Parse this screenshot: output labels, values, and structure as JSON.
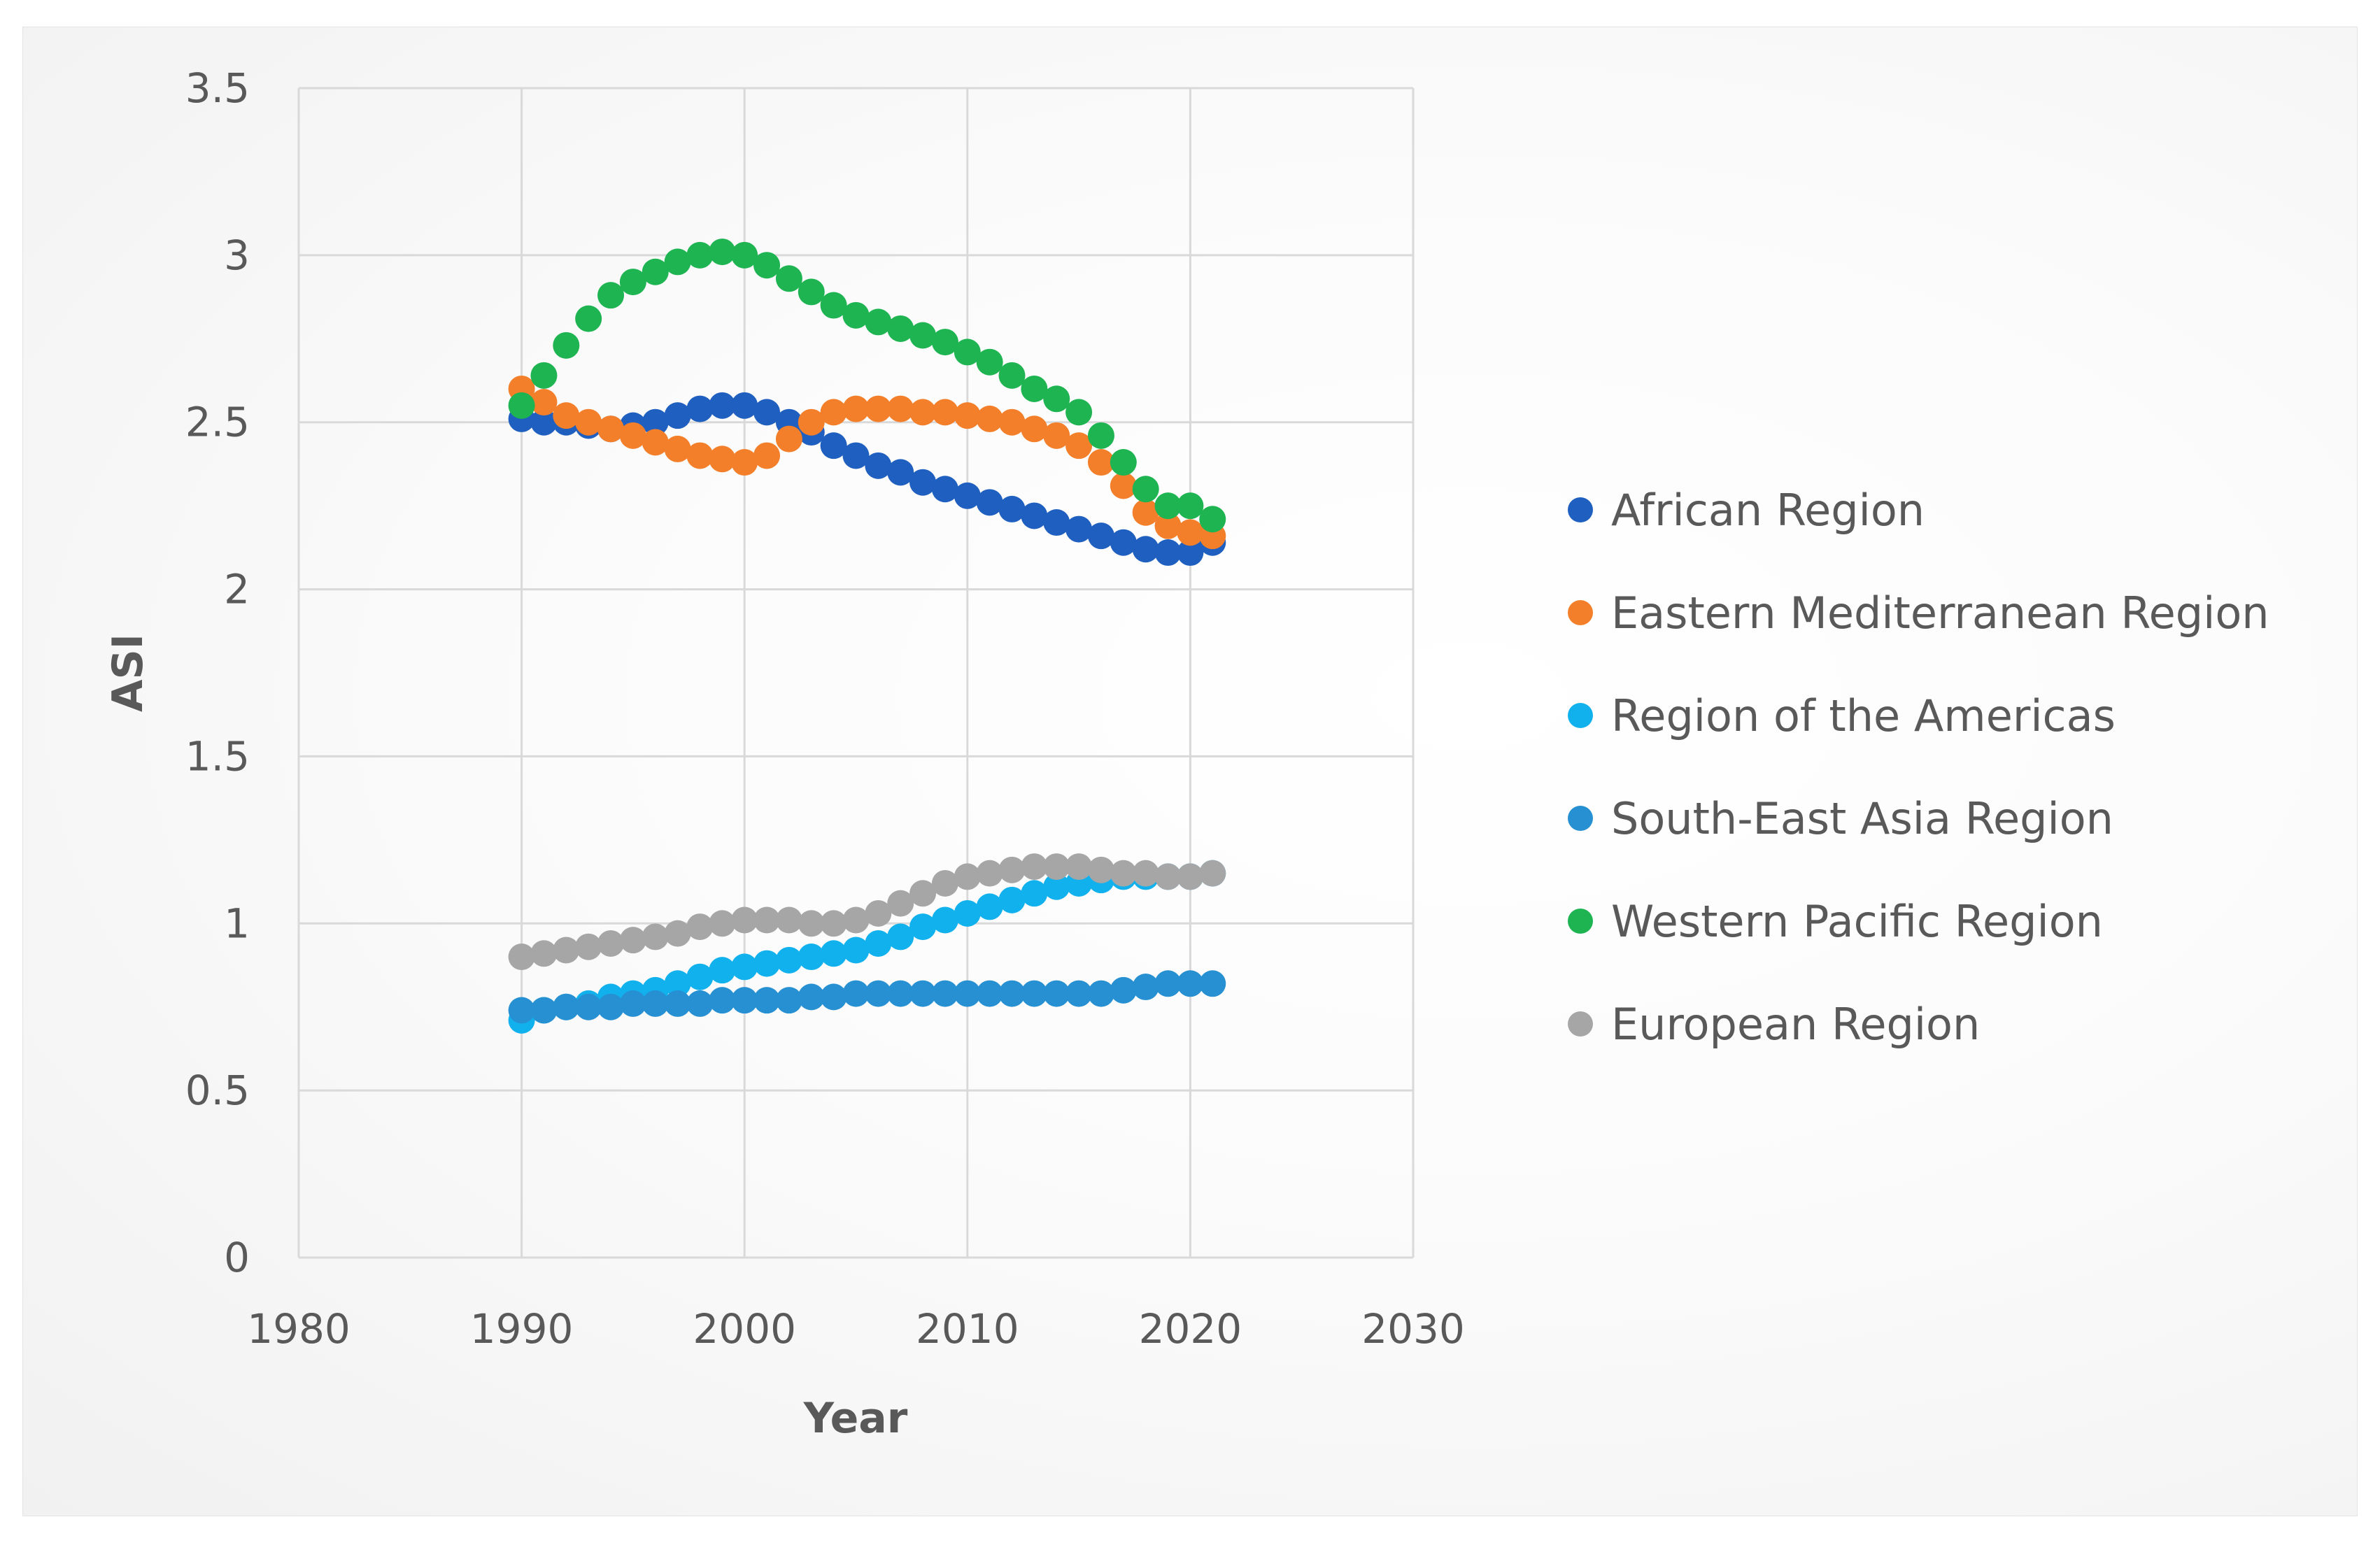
{
  "chart_data": {
    "type": "scatter",
    "title": "",
    "xlabel": "Year",
    "ylabel": "ASI",
    "xlim": [
      1980,
      2030
    ],
    "ylim": [
      0,
      3.5
    ],
    "xticks": [
      1980,
      1990,
      2000,
      2010,
      2020,
      2030
    ],
    "xtick_labels": [
      "1980",
      "1990",
      "2000",
      "2010",
      "2020",
      "2030"
    ],
    "yticks": [
      0,
      0.5,
      1,
      1.5,
      2,
      2.5,
      3,
      3.5
    ],
    "ytick_labels": [
      "0",
      "0.5",
      "1",
      "1.5",
      "2",
      "2.5",
      "3",
      "3.5"
    ],
    "grid": true,
    "legend_position": "right",
    "x": [
      1990,
      1991,
      1992,
      1993,
      1994,
      1995,
      1996,
      1997,
      1998,
      1999,
      2000,
      2001,
      2002,
      2003,
      2004,
      2005,
      2006,
      2007,
      2008,
      2009,
      2010,
      2011,
      2012,
      2013,
      2014,
      2015,
      2016,
      2017,
      2018,
      2019,
      2020,
      2021
    ],
    "series": [
      {
        "name": "African Region",
        "color": "#1f5fbf",
        "values": [
          2.51,
          2.5,
          2.5,
          2.49,
          2.48,
          2.49,
          2.5,
          2.52,
          2.54,
          2.55,
          2.55,
          2.53,
          2.5,
          2.47,
          2.43,
          2.4,
          2.37,
          2.35,
          2.32,
          2.3,
          2.28,
          2.26,
          2.24,
          2.22,
          2.2,
          2.18,
          2.16,
          2.14,
          2.12,
          2.11,
          2.11,
          2.14
        ]
      },
      {
        "name": "Eastern Mediterranean Region",
        "color": "#f47f2a",
        "values": [
          2.6,
          2.56,
          2.52,
          2.5,
          2.48,
          2.46,
          2.44,
          2.42,
          2.4,
          2.39,
          2.38,
          2.4,
          2.45,
          2.5,
          2.53,
          2.54,
          2.54,
          2.54,
          2.53,
          2.53,
          2.52,
          2.51,
          2.5,
          2.48,
          2.46,
          2.43,
          2.38,
          2.31,
          2.23,
          2.19,
          2.17,
          2.16
        ]
      },
      {
        "name": "Region of the Americas",
        "color": "#11b1ee",
        "values": [
          0.71,
          0.74,
          0.75,
          0.76,
          0.78,
          0.79,
          0.8,
          0.82,
          0.84,
          0.86,
          0.87,
          0.88,
          0.89,
          0.9,
          0.91,
          0.92,
          0.94,
          0.96,
          0.99,
          1.01,
          1.03,
          1.05,
          1.07,
          1.09,
          1.11,
          1.12,
          1.13,
          1.14,
          1.14,
          1.14,
          1.14,
          1.15
        ]
      },
      {
        "name": "South-East Asia Region",
        "color": "#2790d2",
        "values": [
          0.74,
          0.74,
          0.75,
          0.75,
          0.75,
          0.76,
          0.76,
          0.76,
          0.76,
          0.77,
          0.77,
          0.77,
          0.77,
          0.78,
          0.78,
          0.79,
          0.79,
          0.79,
          0.79,
          0.79,
          0.79,
          0.79,
          0.79,
          0.79,
          0.79,
          0.79,
          0.79,
          0.8,
          0.81,
          0.82,
          0.82,
          0.82
        ]
      },
      {
        "name": "Western Pacific Region",
        "color": "#1db451",
        "values": [
          2.55,
          2.64,
          2.73,
          2.81,
          2.88,
          2.92,
          2.95,
          2.98,
          3.0,
          3.01,
          3.0,
          2.97,
          2.93,
          2.89,
          2.85,
          2.82,
          2.8,
          2.78,
          2.76,
          2.74,
          2.71,
          2.68,
          2.64,
          2.6,
          2.57,
          2.53,
          2.46,
          2.38,
          2.3,
          2.25,
          2.25,
          2.21
        ]
      },
      {
        "name": "European Region",
        "color": "#a6a6a6",
        "values": [
          0.9,
          0.91,
          0.92,
          0.93,
          0.94,
          0.95,
          0.96,
          0.97,
          0.99,
          1.0,
          1.01,
          1.01,
          1.01,
          1.0,
          1.0,
          1.01,
          1.03,
          1.06,
          1.09,
          1.12,
          1.14,
          1.15,
          1.16,
          1.17,
          1.17,
          1.17,
          1.16,
          1.15,
          1.15,
          1.14,
          1.14,
          1.15
        ]
      }
    ]
  }
}
